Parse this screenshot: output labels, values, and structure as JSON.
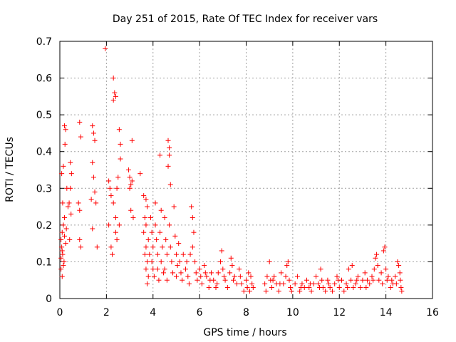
{
  "chart_data": {
    "type": "scatter",
    "title": "Day 251 of 2015, Rate Of TEC Index for receiver vars",
    "xlabel": "GPS time / hours",
    "ylabel": "ROTI / TECUs",
    "xlim": [
      0,
      16
    ],
    "ylim": [
      0,
      0.7
    ],
    "grid": true,
    "xticks": [
      0,
      2,
      4,
      6,
      8,
      10,
      12,
      14,
      16
    ],
    "yticks": [
      0,
      0.1,
      0.2,
      0.3,
      0.4,
      0.5,
      0.6,
      0.7
    ],
    "marker": "plus",
    "color": "#ff0000",
    "series": [
      {
        "name": "ROTI",
        "points": [
          [
            0.05,
            0.16
          ],
          [
            0.08,
            0.14
          ],
          [
            0.1,
            0.18
          ],
          [
            0.12,
            0.12
          ],
          [
            0.05,
            0.08
          ],
          [
            0.1,
            0.06
          ],
          [
            0.15,
            0.2
          ],
          [
            0.2,
            0.22
          ],
          [
            0.12,
            0.26
          ],
          [
            0.08,
            0.34
          ],
          [
            0.15,
            0.36
          ],
          [
            0.2,
            0.47
          ],
          [
            0.25,
            0.46
          ],
          [
            0.22,
            0.42
          ],
          [
            0.3,
            0.3
          ],
          [
            0.35,
            0.25
          ],
          [
            0.18,
            0.1
          ],
          [
            0.25,
            0.15
          ],
          [
            0.05,
            0.11
          ],
          [
            0.1,
            0.13
          ],
          [
            0.15,
            0.09
          ],
          [
            0.2,
            0.17
          ],
          [
            0.28,
            0.19
          ],
          [
            0.4,
            0.26
          ],
          [
            0.45,
            0.37
          ],
          [
            0.5,
            0.34
          ],
          [
            0.48,
            0.23
          ],
          [
            0.42,
            0.16
          ],
          [
            0.45,
            0.3
          ],
          [
            0.8,
            0.26
          ],
          [
            0.85,
            0.24
          ],
          [
            0.85,
            0.48
          ],
          [
            0.9,
            0.44
          ],
          [
            0.9,
            0.14
          ],
          [
            0.85,
            0.16
          ],
          [
            1.4,
            0.47
          ],
          [
            1.45,
            0.45
          ],
          [
            1.5,
            0.43
          ],
          [
            1.4,
            0.37
          ],
          [
            1.45,
            0.33
          ],
          [
            1.5,
            0.29
          ],
          [
            1.35,
            0.27
          ],
          [
            1.4,
            0.19
          ],
          [
            1.6,
            0.14
          ],
          [
            1.55,
            0.26
          ],
          [
            1.95,
            0.68
          ],
          [
            2.1,
            0.32
          ],
          [
            2.15,
            0.3
          ],
          [
            2.2,
            0.28
          ],
          [
            2.1,
            0.2
          ],
          [
            2.2,
            0.14
          ],
          [
            2.25,
            0.12
          ],
          [
            2.3,
            0.6
          ],
          [
            2.35,
            0.56
          ],
          [
            2.3,
            0.54
          ],
          [
            2.4,
            0.55
          ],
          [
            2.3,
            0.26
          ],
          [
            2.4,
            0.18
          ],
          [
            2.45,
            0.16
          ],
          [
            2.5,
            0.33
          ],
          [
            2.55,
            0.46
          ],
          [
            2.6,
            0.42
          ],
          [
            2.6,
            0.38
          ],
          [
            2.45,
            0.3
          ],
          [
            2.4,
            0.22
          ],
          [
            2.55,
            0.2
          ],
          [
            2.95,
            0.35
          ],
          [
            3.0,
            0.33
          ],
          [
            3.05,
            0.31
          ],
          [
            3.1,
            0.32
          ],
          [
            3.1,
            0.43
          ],
          [
            3.0,
            0.3
          ],
          [
            3.05,
            0.24
          ],
          [
            3.15,
            0.22
          ],
          [
            3.45,
            0.34
          ],
          [
            3.6,
            0.28
          ],
          [
            3.7,
            0.27
          ],
          [
            3.75,
            0.25
          ],
          [
            3.65,
            0.22
          ],
          [
            3.7,
            0.2
          ],
          [
            3.6,
            0.18
          ],
          [
            3.8,
            0.16
          ],
          [
            3.7,
            0.14
          ],
          [
            3.65,
            0.12
          ],
          [
            3.75,
            0.1
          ],
          [
            3.7,
            0.08
          ],
          [
            3.8,
            0.06
          ],
          [
            3.75,
            0.04
          ],
          [
            3.85,
            0.12
          ],
          [
            3.9,
            0.22
          ],
          [
            3.95,
            0.18
          ],
          [
            4.0,
            0.14
          ],
          [
            3.95,
            0.1
          ],
          [
            4.0,
            0.08
          ],
          [
            4.05,
            0.06
          ],
          [
            4.1,
            0.26
          ],
          [
            4.1,
            0.2
          ],
          [
            4.15,
            0.16
          ],
          [
            4.2,
            0.12
          ],
          [
            4.2,
            0.08
          ],
          [
            4.25,
            0.05
          ],
          [
            4.3,
            0.39
          ],
          [
            4.35,
            0.24
          ],
          [
            4.3,
            0.18
          ],
          [
            4.4,
            0.14
          ],
          [
            4.35,
            0.1
          ],
          [
            4.45,
            0.07
          ],
          [
            4.5,
            0.22
          ],
          [
            4.55,
            0.16
          ],
          [
            4.6,
            0.12
          ],
          [
            4.5,
            0.08
          ],
          [
            4.6,
            0.05
          ],
          [
            4.65,
            0.43
          ],
          [
            4.7,
            0.41
          ],
          [
            4.7,
            0.39
          ],
          [
            4.65,
            0.36
          ],
          [
            4.75,
            0.31
          ],
          [
            4.7,
            0.2
          ],
          [
            4.75,
            0.14
          ],
          [
            4.8,
            0.1
          ],
          [
            4.85,
            0.07
          ],
          [
            4.9,
            0.25
          ],
          [
            4.95,
            0.17
          ],
          [
            5.0,
            0.12
          ],
          [
            5.05,
            0.09
          ],
          [
            5.0,
            0.06
          ],
          [
            5.1,
            0.15
          ],
          [
            5.15,
            0.1
          ],
          [
            5.2,
            0.07
          ],
          [
            5.25,
            0.05
          ],
          [
            5.3,
            0.12
          ],
          [
            5.4,
            0.08
          ],
          [
            5.5,
            0.06
          ],
          [
            5.6,
            0.12
          ],
          [
            5.7,
            0.14
          ],
          [
            5.65,
            0.25
          ],
          [
            5.7,
            0.22
          ],
          [
            5.75,
            0.18
          ],
          [
            5.8,
            0.1
          ],
          [
            5.85,
            0.07
          ],
          [
            5.9,
            0.05
          ],
          [
            5.55,
            0.04
          ],
          [
            5.45,
            0.1
          ],
          [
            6.0,
            0.08
          ],
          [
            6.05,
            0.06
          ],
          [
            6.1,
            0.04
          ],
          [
            6.2,
            0.09
          ],
          [
            6.3,
            0.06
          ],
          [
            6.4,
            0.03
          ],
          [
            6.5,
            0.07
          ],
          [
            6.6,
            0.05
          ],
          [
            6.7,
            0.03
          ],
          [
            6.8,
            0.07
          ],
          [
            6.9,
            0.1
          ],
          [
            6.95,
            0.13
          ],
          [
            7.0,
            0.08
          ],
          [
            7.1,
            0.05
          ],
          [
            7.2,
            0.03
          ],
          [
            7.3,
            0.07
          ],
          [
            7.35,
            0.11
          ],
          [
            7.4,
            0.09
          ],
          [
            7.5,
            0.06
          ],
          [
            7.6,
            0.04
          ],
          [
            7.7,
            0.08
          ],
          [
            7.8,
            0.04
          ],
          [
            7.9,
            0.02
          ],
          [
            8.0,
            0.05
          ],
          [
            8.1,
            0.07
          ],
          [
            8.2,
            0.06
          ],
          [
            8.3,
            0.03
          ],
          [
            8.15,
            0.02
          ],
          [
            8.25,
            0.04
          ],
          [
            8.8,
            0.04
          ],
          [
            8.85,
            0.02
          ],
          [
            8.9,
            0.06
          ],
          [
            9.0,
            0.1
          ],
          [
            9.05,
            0.05
          ],
          [
            9.1,
            0.03
          ],
          [
            9.2,
            0.06
          ],
          [
            9.3,
            0.04
          ],
          [
            9.4,
            0.02
          ],
          [
            9.5,
            0.07
          ],
          [
            9.6,
            0.04
          ],
          [
            9.7,
            0.06
          ],
          [
            9.75,
            0.09
          ],
          [
            9.8,
            0.1
          ],
          [
            9.85,
            0.05
          ],
          [
            9.9,
            0.03
          ],
          [
            9.95,
            0.02
          ],
          [
            10.1,
            0.04
          ],
          [
            10.2,
            0.06
          ],
          [
            10.3,
            0.02
          ],
          [
            10.4,
            0.04
          ],
          [
            10.5,
            0.03
          ],
          [
            10.6,
            0.05
          ],
          [
            10.7,
            0.03
          ],
          [
            10.8,
            0.02
          ],
          [
            10.9,
            0.04
          ],
          [
            11.0,
            0.06
          ],
          [
            11.1,
            0.04
          ],
          [
            11.2,
            0.08
          ],
          [
            11.25,
            0.05
          ],
          [
            11.3,
            0.03
          ],
          [
            11.4,
            0.02
          ],
          [
            11.5,
            0.05
          ],
          [
            11.6,
            0.03
          ],
          [
            11.7,
            0.02
          ],
          [
            11.8,
            0.04
          ],
          [
            11.9,
            0.06
          ],
          [
            12.0,
            0.03
          ],
          [
            12.1,
            0.05
          ],
          [
            12.2,
            0.02
          ],
          [
            12.3,
            0.04
          ],
          [
            12.4,
            0.08
          ],
          [
            12.5,
            0.05
          ],
          [
            12.55,
            0.09
          ],
          [
            12.6,
            0.03
          ],
          [
            12.7,
            0.04
          ],
          [
            12.8,
            0.06
          ],
          [
            12.9,
            0.03
          ],
          [
            13.0,
            0.05
          ],
          [
            13.1,
            0.07
          ],
          [
            13.2,
            0.05
          ],
          [
            13.3,
            0.04
          ],
          [
            13.4,
            0.06
          ],
          [
            13.5,
            0.08
          ],
          [
            13.55,
            0.11
          ],
          [
            13.6,
            0.12
          ],
          [
            13.65,
            0.09
          ],
          [
            13.7,
            0.05
          ],
          [
            13.8,
            0.07
          ],
          [
            13.9,
            0.13
          ],
          [
            13.95,
            0.14
          ],
          [
            14.0,
            0.08
          ],
          [
            14.05,
            0.05
          ],
          [
            14.1,
            0.06
          ],
          [
            14.2,
            0.03
          ],
          [
            14.3,
            0.04
          ],
          [
            14.4,
            0.06
          ],
          [
            14.5,
            0.1
          ],
          [
            14.55,
            0.09
          ],
          [
            14.6,
            0.07
          ],
          [
            14.62,
            0.05
          ],
          [
            14.65,
            0.03
          ],
          [
            14.68,
            0.02
          ],
          [
            6.25,
            0.07
          ],
          [
            6.45,
            0.05
          ],
          [
            6.75,
            0.04
          ],
          [
            7.05,
            0.06
          ],
          [
            7.45,
            0.05
          ],
          [
            7.75,
            0.06
          ],
          [
            8.05,
            0.03
          ],
          [
            9.15,
            0.05
          ],
          [
            9.45,
            0.04
          ],
          [
            10.35,
            0.03
          ],
          [
            10.75,
            0.04
          ],
          [
            11.15,
            0.03
          ],
          [
            11.55,
            0.04
          ],
          [
            11.95,
            0.05
          ],
          [
            12.35,
            0.03
          ],
          [
            12.75,
            0.05
          ],
          [
            13.15,
            0.03
          ],
          [
            13.45,
            0.05
          ],
          [
            13.85,
            0.04
          ],
          [
            14.25,
            0.05
          ],
          [
            14.45,
            0.04
          ]
        ]
      }
    ]
  }
}
